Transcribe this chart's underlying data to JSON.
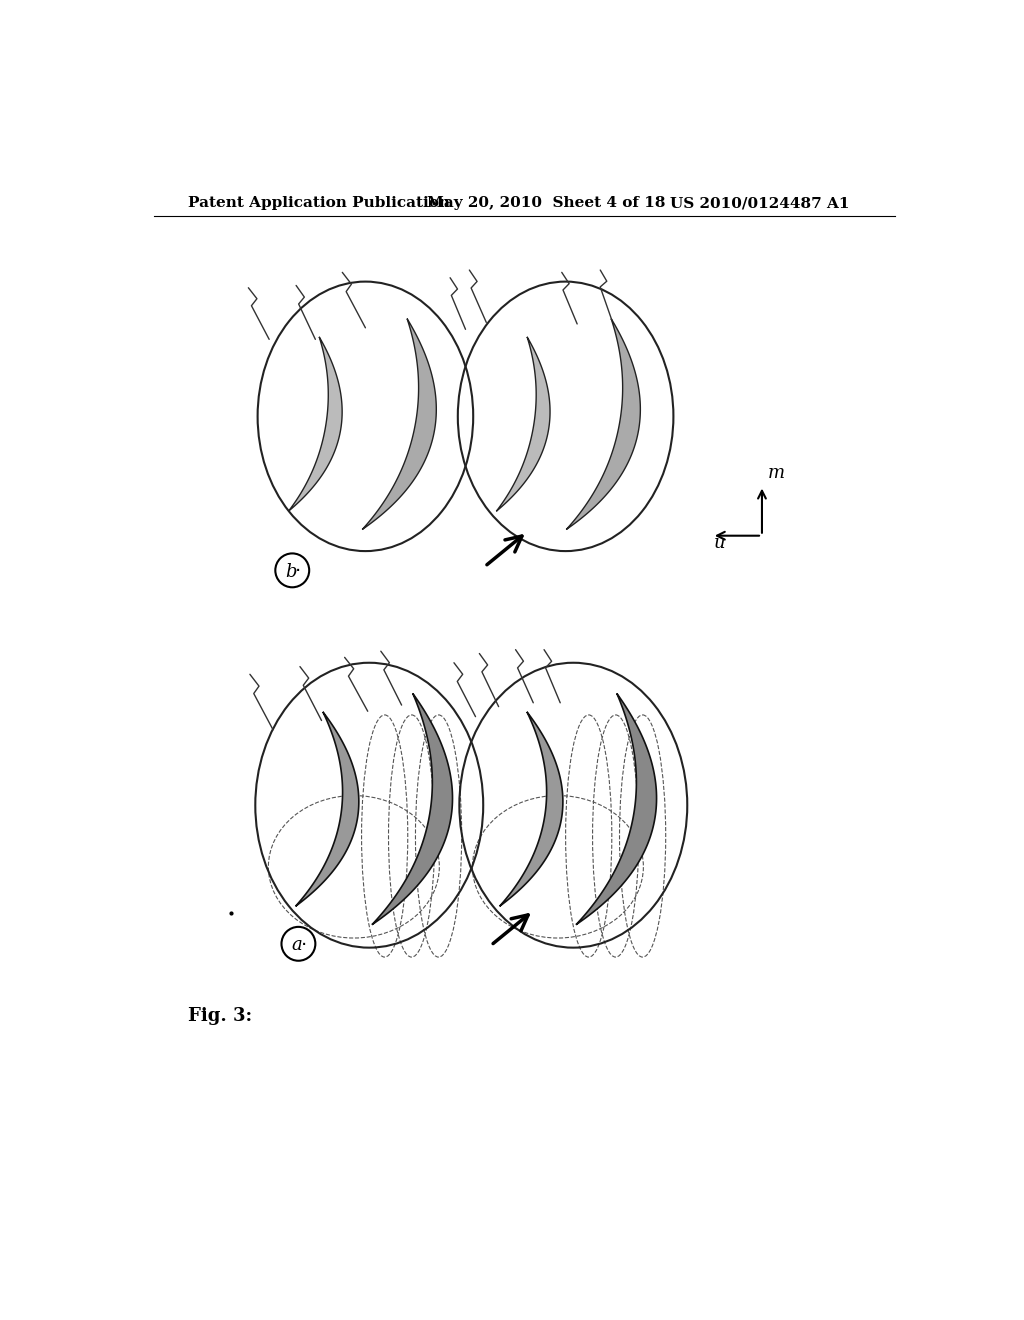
{
  "background_color": "#ffffff",
  "header_text": "Patent Application Publication",
  "header_date": "May 20, 2010  Sheet 4 of 18",
  "header_patent": "US 2010/0124487 A1",
  "fig_label": "Fig. 3:",
  "sub_label_b": "b",
  "sub_label_a": "a",
  "axis_m": "m",
  "axis_u": "u",
  "header_fontsize": 11,
  "label_fontsize": 12,
  "title_fontsize": 13
}
